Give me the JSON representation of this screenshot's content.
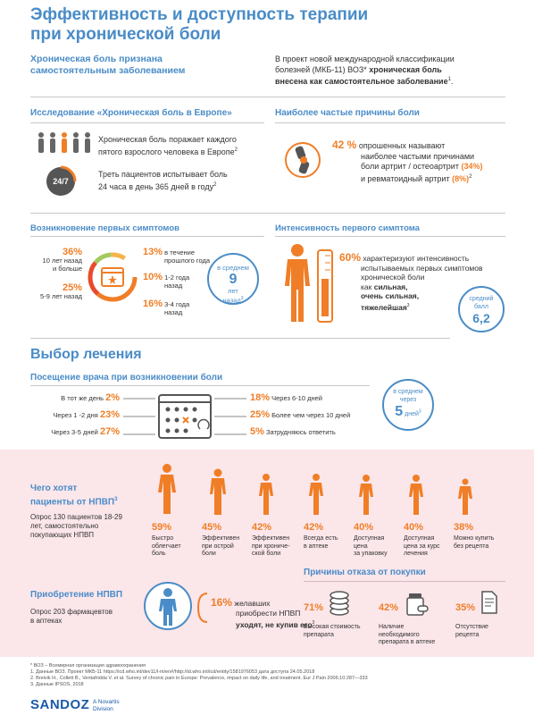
{
  "title": {
    "line1": "Эффективность и доступность терапии",
    "line2": "при хронической боли"
  },
  "recognition": {
    "heading_line1": "Хроническая боль признана",
    "heading_line2": "самостоятельным заболеванием",
    "text_line1": "В проект новой международной классификации",
    "text_line2_a": "болезней  (МКБ-11) ВОЗ*",
    "text_line2_b": "хроническая боль",
    "text_line3": "внесена как самостоятельное  заболевание",
    "text_line3_sup": "1",
    "text_line3_end": "."
  },
  "study": {
    "heading": "Исследование «Хроническая боль в Европе»",
    "fact1_line1": "Хроническая боль поражает каждого",
    "fact1_line2": "пятого взрослого человека в Европе",
    "fact1_sup": "2",
    "fact2_line1": "Треть пациентов испытывает боль",
    "fact2_line2": "24 часа в день 365 дней в году",
    "fact2_sup": "2",
    "clock_label": "24/7"
  },
  "causes": {
    "heading": "Наиболее частые причины боли",
    "pct": "42 %",
    "line1": "опрошенных называют",
    "line2": "наиболее частыми причинами",
    "line3_a": "боли артрит / остеоартрит",
    "line3_b": "(34%)",
    "line4_a": "и ревматоидный артрит",
    "line4_b": "(8%)",
    "line4_sup": "2"
  },
  "onset": {
    "heading": "Возникновение первых симптомов",
    "left": [
      {
        "pct": "36%",
        "line1": "10 лет назад",
        "line2": "и больше"
      },
      {
        "pct": "25%",
        "line1": "5-9 лет назад",
        "line2": ""
      }
    ],
    "right": [
      {
        "pct": "13%",
        "line1": "в течение",
        "line2": "прошлого года"
      },
      {
        "pct": "10%",
        "line1": "1-2 года",
        "line2": "назад"
      },
      {
        "pct": "16%",
        "line1": "3-4 года",
        "line2": "назад"
      }
    ],
    "badge_line1": "в среднем",
    "badge_num": "9",
    "badge_line3": "лет",
    "badge_line4": "назад",
    "badge_sup": "3"
  },
  "intensity": {
    "heading": "Интенсивность первого симптома",
    "pct": "60%",
    "line1": "характеризуют интенсивность",
    "line2": "испытываемых первых симптомов",
    "line3": "хронической боли",
    "line4": "как",
    "line4_b": "сильная,",
    "line5": "очень сильная,",
    "line6": "тяжелейшая",
    "line6_sup": "3",
    "badge_line1": "средний",
    "badge_line2": "балл",
    "badge_num": "6,2"
  },
  "treatment": {
    "heading": "Выбор лечения",
    "visit_heading": "Посещение врача при возникновении боли",
    "left": [
      {
        "label": "В тот же день",
        "pct": "2%"
      },
      {
        "label": "Через 1 -2 дня",
        "pct": "23%"
      },
      {
        "label": "Через 3-5 дней",
        "pct": "27%"
      }
    ],
    "right": [
      {
        "pct": "18%",
        "label": "Через 6-10 дней"
      },
      {
        "pct": "25%",
        "label": "Более чем   через 10 дней"
      },
      {
        "pct": "5%",
        "label": "Затрудняюсь ответить"
      }
    ],
    "badge_line1": "в среднем",
    "badge_line2": "через",
    "badge_num": "5",
    "badge_unit": "дней",
    "badge_sup": "3"
  },
  "nsaid_want": {
    "heading_line1": "Чего хотят",
    "heading_line2": "пациенты от НПВП",
    "heading_sup": "3",
    "desc_line1": "Опрос 130 пациентов 18-29",
    "desc_line2": "лет, самостоятельно",
    "desc_line3": "покупающих НПВП",
    "items": [
      {
        "pct": "59%",
        "lines": [
          "Быстро",
          "облегчает",
          "боль"
        ]
      },
      {
        "pct": "45%",
        "lines": [
          "Эффективен",
          "при острой",
          "боли"
        ]
      },
      {
        "pct": "42%",
        "lines": [
          "Эффективен",
          "при хрониче-",
          "ской боли"
        ]
      },
      {
        "pct": "42%",
        "lines": [
          "Всегда есть",
          "в аптеке"
        ]
      },
      {
        "pct": "40%",
        "lines": [
          "Доступная",
          "цена",
          "за упаковку"
        ]
      },
      {
        "pct": "40%",
        "lines": [
          "Доступная",
          "цена за курс",
          "лечения"
        ]
      },
      {
        "pct": "38%",
        "lines": [
          "Можно купить",
          "без рецепта"
        ]
      }
    ]
  },
  "nsaid_buy": {
    "heading": "Приобретение НПВП",
    "desc_line1": "Опрос 203 фармацевтов",
    "desc_line2": "в аптеках",
    "pct": "16%",
    "line1": "желавших",
    "line2": "приобрести НПВП",
    "line3": "уходят, не купив его",
    "line3_sup": "3"
  },
  "refusal": {
    "heading": "Причины отказа от покупки",
    "items": [
      {
        "pct": "71%",
        "lines": [
          "Высокая стоимость",
          "препарата"
        ]
      },
      {
        "pct": "42%",
        "lines": [
          "Наличие",
          "необходимого",
          "препарата в аптеке"
        ]
      },
      {
        "pct": "35%",
        "lines": [
          "Отсутствие",
          "рецепта"
        ]
      }
    ]
  },
  "footnotes": [
    "* ВОЗ – Всемирная организация здравоохранения",
    "1. Данные ВОЗ. Проект МКБ-11 https://icd.who.int/dev11/l-m/en#/http://id.who.int/icd/entity/1581976053  дата доступа 24.05.2018",
    "2. Breivik H., Collett B., Ventafridda V. et al. Survey of chronic pain in Europe: Prevalence, impact on daily life, and treatment. Eur J Pain 2006;10:287—333",
    "3. Данные  IPSOS, 2018"
  ],
  "logo": {
    "brand": "SANDOZ",
    "sub1": "A Novartis",
    "sub2": "Division"
  },
  "colors": {
    "blue": "#4a8cc7",
    "orange": "#f07e26",
    "pink": "#fbe6ea"
  }
}
